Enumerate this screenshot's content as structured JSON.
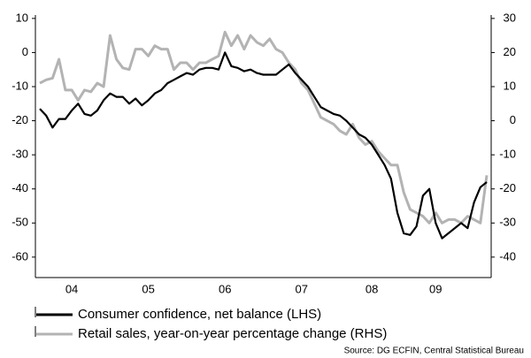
{
  "chart_data": {
    "type": "line",
    "categories": [
      null,
      null,
      null,
      null,
      null,
      "04",
      null,
      null,
      null,
      null,
      null,
      null,
      null,
      null,
      null,
      null,
      null,
      "05",
      null,
      null,
      null,
      null,
      null,
      null,
      null,
      null,
      null,
      null,
      null,
      "06",
      null,
      null,
      null,
      null,
      null,
      null,
      null,
      null,
      null,
      null,
      null,
      "07",
      null,
      null,
      null,
      null,
      null,
      null,
      null,
      null,
      null,
      null,
      "08",
      null,
      null,
      null,
      null,
      null,
      null,
      null,
      null,
      null,
      "09",
      null,
      null,
      null,
      null,
      null,
      null,
      null,
      null
    ],
    "series": [
      {
        "name": "Consumer confidence, net balance (LHS)",
        "color": "#000000",
        "axis": "y",
        "values": [
          -16.5,
          -18.5,
          -22,
          -19.5,
          -19.5,
          -17,
          -15,
          -18,
          -18.5,
          -17,
          -14,
          -12,
          -13,
          -13,
          -15,
          -13.5,
          -15.5,
          -14,
          -12,
          -11,
          -9,
          -8,
          -7,
          -6,
          -6.5,
          -5,
          -4.5,
          -4.5,
          -5,
          0,
          -4,
          -4.5,
          -5.5,
          -5,
          -6,
          -6.5,
          -6.5,
          -6.5,
          -5,
          -3.5,
          -6,
          -8,
          -10,
          -13,
          -16,
          -17,
          -18,
          -18.5,
          -20,
          -22,
          -24,
          -25,
          -27,
          -30,
          -33,
          -37,
          -47,
          -53,
          -53.5,
          -51,
          -42,
          -40,
          -50,
          -54.5,
          -53,
          -51.5,
          -50,
          -51.5,
          -44,
          -39.5,
          -38
        ]
      },
      {
        "name": "Retail sales, year-on-year percentage change (RHS)",
        "color": "#b3b3b3",
        "axis": "y2",
        "values": [
          11,
          12,
          12.5,
          18,
          9,
          9,
          6,
          9,
          8.5,
          11,
          10,
          25,
          18,
          15.5,
          15,
          21,
          21,
          19,
          22,
          21,
          21,
          15,
          17,
          17,
          15,
          17,
          17,
          18,
          19,
          26,
          22,
          25,
          21,
          25,
          23,
          22,
          24,
          21,
          20,
          17,
          15,
          11,
          9,
          5,
          1,
          0,
          -1,
          -3,
          -4,
          -1,
          -5,
          -7,
          -6,
          -9,
          -11,
          -13,
          -13,
          -21,
          -26,
          -27,
          -28,
          -30,
          -27,
          -30,
          -29,
          -29,
          -30,
          -28,
          -29,
          -30,
          -16
        ]
      }
    ],
    "ylim": [
      -66,
      11
    ],
    "yticks": [
      10,
      0,
      -10,
      -20,
      -30,
      -40,
      -50,
      -60
    ],
    "y2lim": [
      -46,
      31
    ],
    "y2ticks": [
      30,
      20,
      10,
      0,
      -10,
      -20,
      -30,
      -40
    ],
    "source": "Source: DG ECFIN, Central Statistical Bureau"
  }
}
